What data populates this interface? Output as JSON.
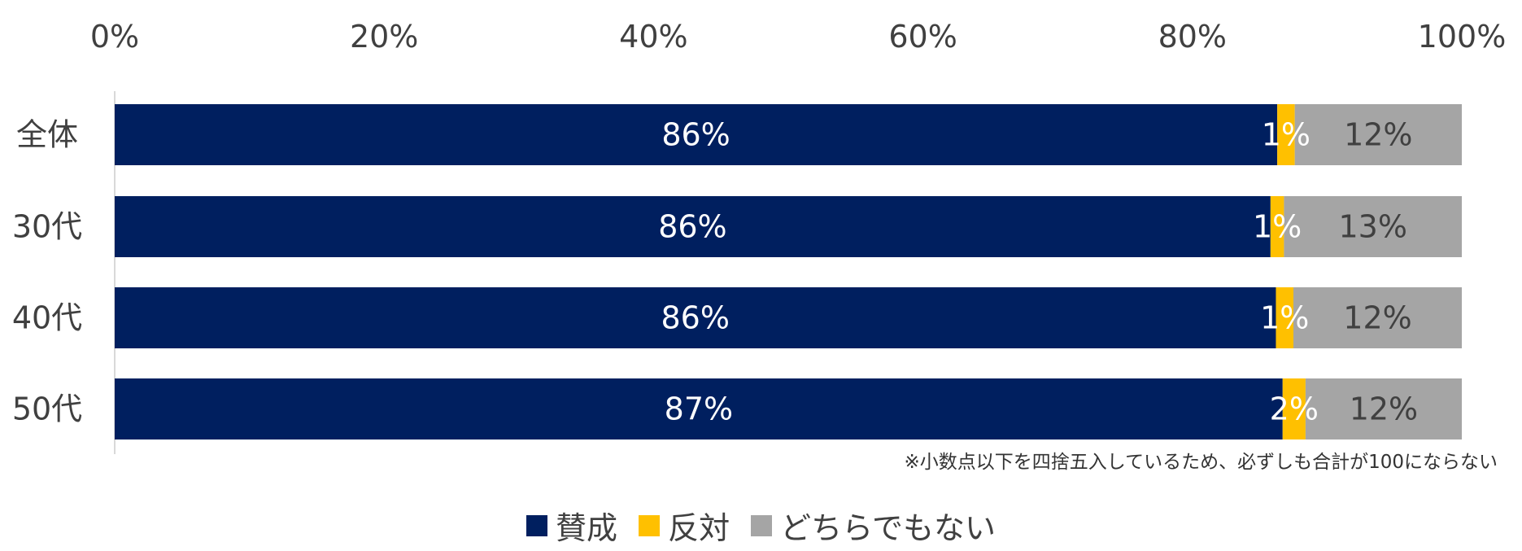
{
  "chart_data": {
    "type": "bar",
    "orientation": "horizontal",
    "stacked": "percent",
    "categories": [
      "全体",
      "30代",
      "40代",
      "50代"
    ],
    "series": [
      {
        "name": "賛成",
        "color": "#001F5F",
        "values": [
          86.3,
          85.8,
          86.2,
          86.7
        ],
        "labels": [
          "86%",
          "86%",
          "86%",
          "87%"
        ],
        "label_color": "#FFFFFF"
      },
      {
        "name": "反対",
        "color": "#FFC000",
        "values": [
          1.3,
          1.0,
          1.3,
          1.7
        ],
        "labels": [
          "1%",
          "1%",
          "1%",
          "2%"
        ],
        "label_color": "#FFFFFF"
      },
      {
        "name": "どちらでもない",
        "color": "#A5A5A5",
        "values": [
          12.4,
          13.2,
          12.5,
          11.6
        ],
        "labels": [
          "12%",
          "13%",
          "12%",
          "12%"
        ],
        "label_color": "#404040"
      }
    ],
    "xlim": [
      0,
      100
    ],
    "x_ticks": [
      "0%",
      "20%",
      "40%",
      "60%",
      "80%",
      "100%"
    ],
    "x_axis_position": "top",
    "grid": false,
    "legend_position": "bottom",
    "note": "※小数点以下を四捨五入しているため、必ずしも合計が100にならない"
  }
}
